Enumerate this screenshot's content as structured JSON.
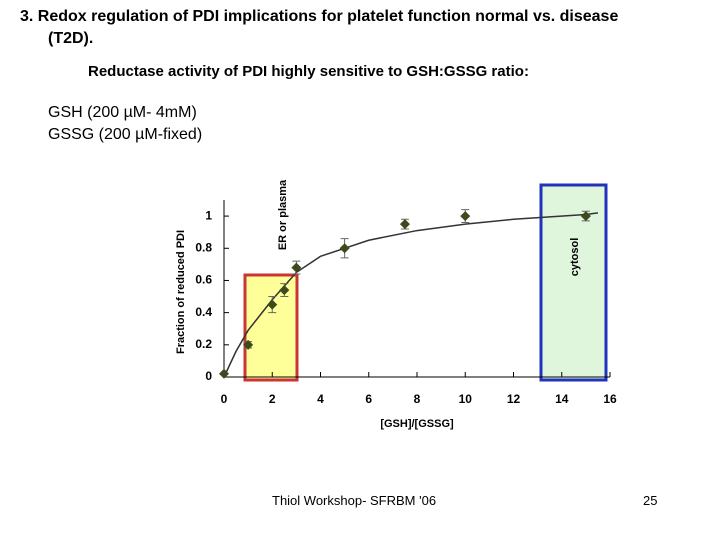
{
  "header": {
    "title_line1": "3. Redox regulation of PDI implications for platelet function normal vs. disease",
    "title_line2": "(T2D).",
    "subtitle": "Reductase activity of PDI highly sensitive to GSH:GSSG ratio:"
  },
  "conditions": [
    "GSH (200 µM- 4mM)",
    "GSSG (200 µM-fixed)"
  ],
  "chart_data": {
    "type": "scatter",
    "x_label": "[GSH]/[GSSG]",
    "y_label": "Fraction of reduced PDI",
    "x": [
      0,
      1,
      2,
      2.5,
      3,
      5,
      7.5,
      10,
      15
    ],
    "values": [
      0.02,
      0.2,
      0.45,
      0.54,
      0.68,
      0.8,
      0.95,
      1.0,
      1.0
    ],
    "errors": [
      0,
      0.02,
      0.05,
      0.04,
      0.04,
      0.06,
      0.03,
      0.04,
      0.03
    ],
    "color": "#3d4a1a",
    "curve": {
      "x": [
        0,
        0.5,
        1,
        2,
        3,
        4,
        6,
        8,
        10,
        12,
        15,
        15.5
      ],
      "values": [
        0,
        0.16,
        0.29,
        0.48,
        0.65,
        0.75,
        0.85,
        0.91,
        0.95,
        0.98,
        1.01,
        1.02
      ]
    },
    "xlim": [
      0,
      16
    ],
    "ylim": [
      0,
      1.1
    ],
    "xticks": [
      0,
      2,
      4,
      6,
      8,
      10,
      12,
      14,
      16
    ],
    "yticks": [
      0,
      0.2,
      0.4,
      0.6,
      0.8,
      1
    ],
    "annotations": [
      "ER or plasma",
      "cytosol"
    ]
  },
  "footer": {
    "text": "Thiol Workshop- SFRBM '06",
    "page": "25"
  }
}
